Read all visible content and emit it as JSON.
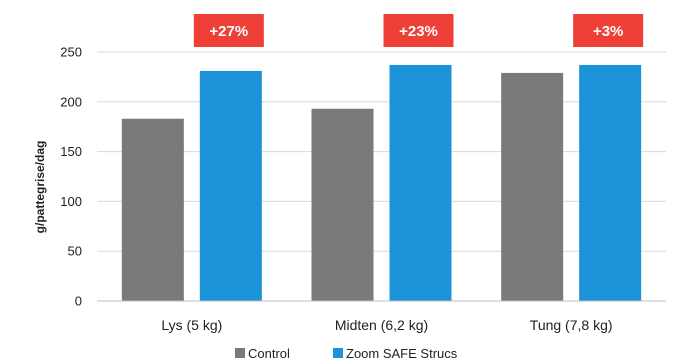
{
  "chart_data": {
    "type": "bar",
    "ylabel": "g/pattegrise/dag",
    "xlabel": "",
    "ylim": [
      0,
      250
    ],
    "yticks": [
      0,
      50,
      100,
      150,
      200,
      250
    ],
    "grid": true,
    "legend_position": "bottom",
    "categories": [
      "Lys (5 kg)",
      "Midten (6,2 kg)",
      "Tung (7,8 kg)"
    ],
    "series": [
      {
        "name": "Control",
        "color": "#7a7a7a",
        "values": [
          183,
          193,
          229
        ]
      },
      {
        "name": "Zoom SAFE Strucs",
        "color": "#1c93d8",
        "values": [
          231,
          237,
          237
        ]
      }
    ],
    "annotations": [
      "+27%",
      "+23%",
      "+3%"
    ],
    "annotation_color": "#ee4036"
  }
}
